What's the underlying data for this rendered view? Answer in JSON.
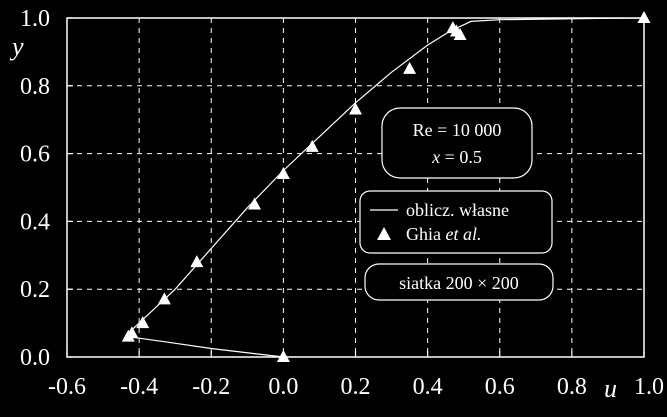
{
  "chart_data": {
    "type": "line",
    "xlabel": "u",
    "ylabel": "y",
    "xlim": [
      -0.6,
      1.0
    ],
    "ylim": [
      0.0,
      1.0
    ],
    "xticks": [
      "-0.6",
      "-0.4",
      "-0.2",
      "0.0",
      "0.2",
      "0.4",
      "0.6",
      "0.8",
      "1.0"
    ],
    "yticks": [
      "0.0",
      "0.2",
      "0.4",
      "0.6",
      "0.8",
      "1.0"
    ],
    "grid": true,
    "series": [
      {
        "name": "oblicz. własne",
        "style": "line",
        "x": [
          0.0,
          -0.08,
          -0.2,
          -0.33,
          -0.43,
          -0.42,
          -0.4,
          -0.35,
          -0.3,
          -0.2,
          -0.1,
          0.0,
          0.1,
          0.2,
          0.3,
          0.4,
          0.46,
          0.5,
          0.52,
          0.6,
          0.75,
          0.9,
          1.0
        ],
        "y": [
          0.0,
          0.01,
          0.025,
          0.045,
          0.06,
          0.08,
          0.1,
          0.15,
          0.2,
          0.32,
          0.44,
          0.55,
          0.65,
          0.75,
          0.84,
          0.92,
          0.96,
          0.98,
          0.99,
          0.995,
          0.997,
          0.999,
          1.0
        ]
      },
      {
        "name": "Ghia et al.",
        "style": "marker-triangle",
        "x": [
          0.0,
          -0.43,
          -0.42,
          -0.39,
          -0.33,
          -0.24,
          -0.08,
          0.0,
          0.08,
          0.2,
          0.35,
          0.47,
          0.48,
          0.49,
          1.0
        ],
        "y": [
          0.0,
          0.06,
          0.07,
          0.1,
          0.17,
          0.28,
          0.45,
          0.54,
          0.62,
          0.73,
          0.85,
          0.97,
          0.96,
          0.95,
          1.0
        ]
      }
    ],
    "annotations": {
      "re_label": "Re = 10 000",
      "x_label_var": "x",
      "x_label_value": " = 0.5",
      "grid_label": "siatka 200 × 200"
    },
    "legend": {
      "placement": "center-right",
      "line_label": "oblicz. własne",
      "marker_label_prefix": "Ghia ",
      "marker_label_italic": "et al."
    }
  }
}
